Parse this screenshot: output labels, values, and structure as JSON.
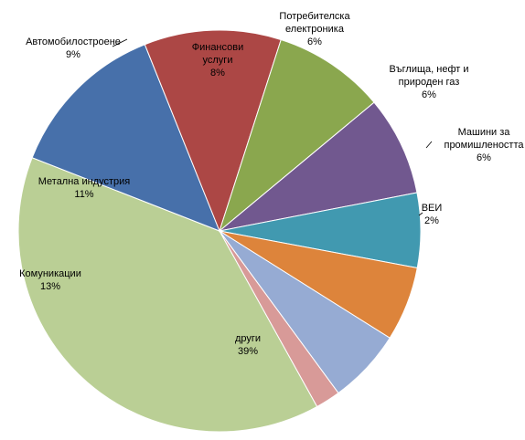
{
  "chart_data": {
    "type": "pie",
    "title": "",
    "slices": [
      {
        "label": [
          "други"
        ],
        "value": 39,
        "pct_label": "39%",
        "color": "#bacf95"
      },
      {
        "label": [
          "Комуникации"
        ],
        "value": 13,
        "pct_label": "13%",
        "color": "#4770aa"
      },
      {
        "label": [
          "Метална индустрия"
        ],
        "value": 11,
        "pct_label": "11%",
        "color": "#ac4745"
      },
      {
        "label": [
          "Автомобилостроене"
        ],
        "value": 9,
        "pct_label": "9%",
        "color": "#8aa74e"
      },
      {
        "label": [
          "Финансови",
          "услуги"
        ],
        "value": 8,
        "pct_label": "8%",
        "color": "#71588f"
      },
      {
        "label": [
          "Потребителска",
          "електроника"
        ],
        "value": 6,
        "pct_label": "6%",
        "color": "#4199b0"
      },
      {
        "label": [
          "Въглища, нефт и",
          "природен газ"
        ],
        "value": 6,
        "pct_label": "6%",
        "color": "#dd843b"
      },
      {
        "label": [
          "Машини за",
          "промишлеността"
        ],
        "value": 6,
        "pct_label": "6%",
        "color": "#96abd3"
      },
      {
        "label": [
          "ВЕИ"
        ],
        "value": 2,
        "pct_label": "2%",
        "color": "#d89a98"
      }
    ]
  }
}
